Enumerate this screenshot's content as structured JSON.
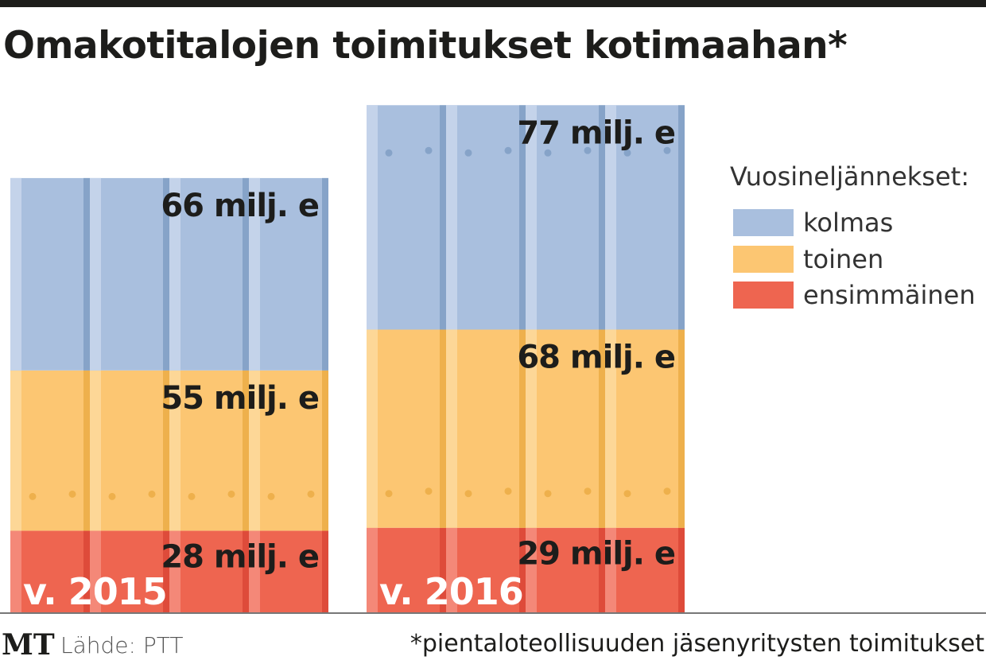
{
  "chart_data": {
    "type": "bar",
    "stacked": true,
    "title": "Omakotitalojen toimitukset kotimaahan*",
    "categories": [
      "v. 2015",
      "v. 2016"
    ],
    "unit_suffix": " milj. e",
    "series": [
      {
        "name": "ensimmäinen",
        "values": [
          28,
          29
        ],
        "color": "#ee6550",
        "dark": "#de4b3a",
        "light": "#f48878",
        "labels": [
          "28 milj. e",
          "29 milj. e"
        ]
      },
      {
        "name": "toinen",
        "values": [
          55,
          68
        ],
        "color": "#fcc672",
        "dark": "#eeb04c",
        "light": "#fdd797",
        "labels": [
          "55 milj. e",
          "68 milj. e"
        ]
      },
      {
        "name": "kolmas",
        "values": [
          66,
          77
        ],
        "color": "#a9bfde",
        "dark": "#86a3c8",
        "light": "#c4d3ea",
        "labels": [
          "66 milj. e",
          "77 milj. e"
        ]
      }
    ],
    "legend": {
      "title": "Vuosineljännekset:",
      "placement": "right",
      "order": [
        "kolmas",
        "toinen",
        "ensimmäinen"
      ]
    },
    "xlabel": "",
    "ylabel": "",
    "grid": false
  },
  "footer": {
    "logo": "MT",
    "source": "Lähde: PTT",
    "footnote": "*pientaloteollisuuden jäsenyritysten toimitukset"
  }
}
